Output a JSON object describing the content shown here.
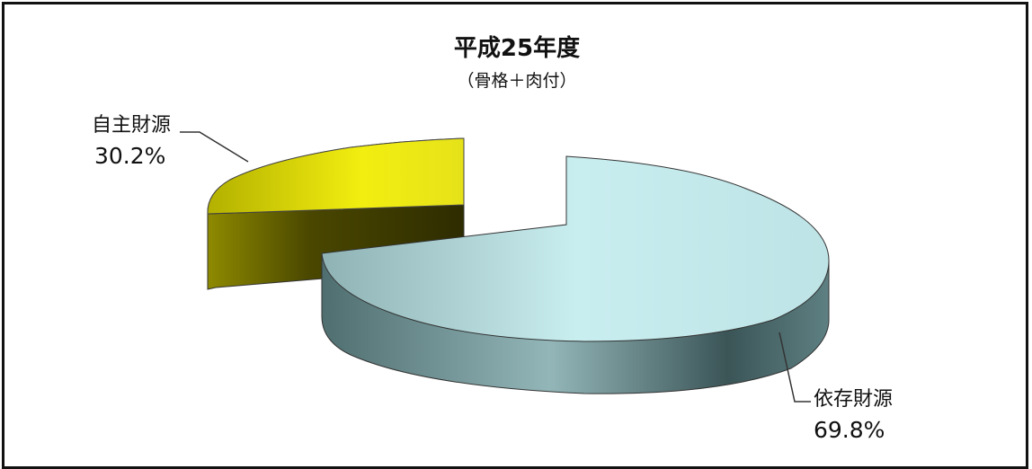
{
  "chart_data": {
    "type": "pie",
    "title": "平成25年度",
    "subtitle": "（骨格＋肉付）",
    "slices": [
      {
        "label": "自主財源",
        "percent_label": "30.2%",
        "value": 30.2,
        "color": "#e6e21a",
        "exploded": true
      },
      {
        "label": "依存財源",
        "percent_label": "69.8%",
        "value": 69.8,
        "color": "#a9d4d6",
        "exploded": false
      }
    ]
  }
}
